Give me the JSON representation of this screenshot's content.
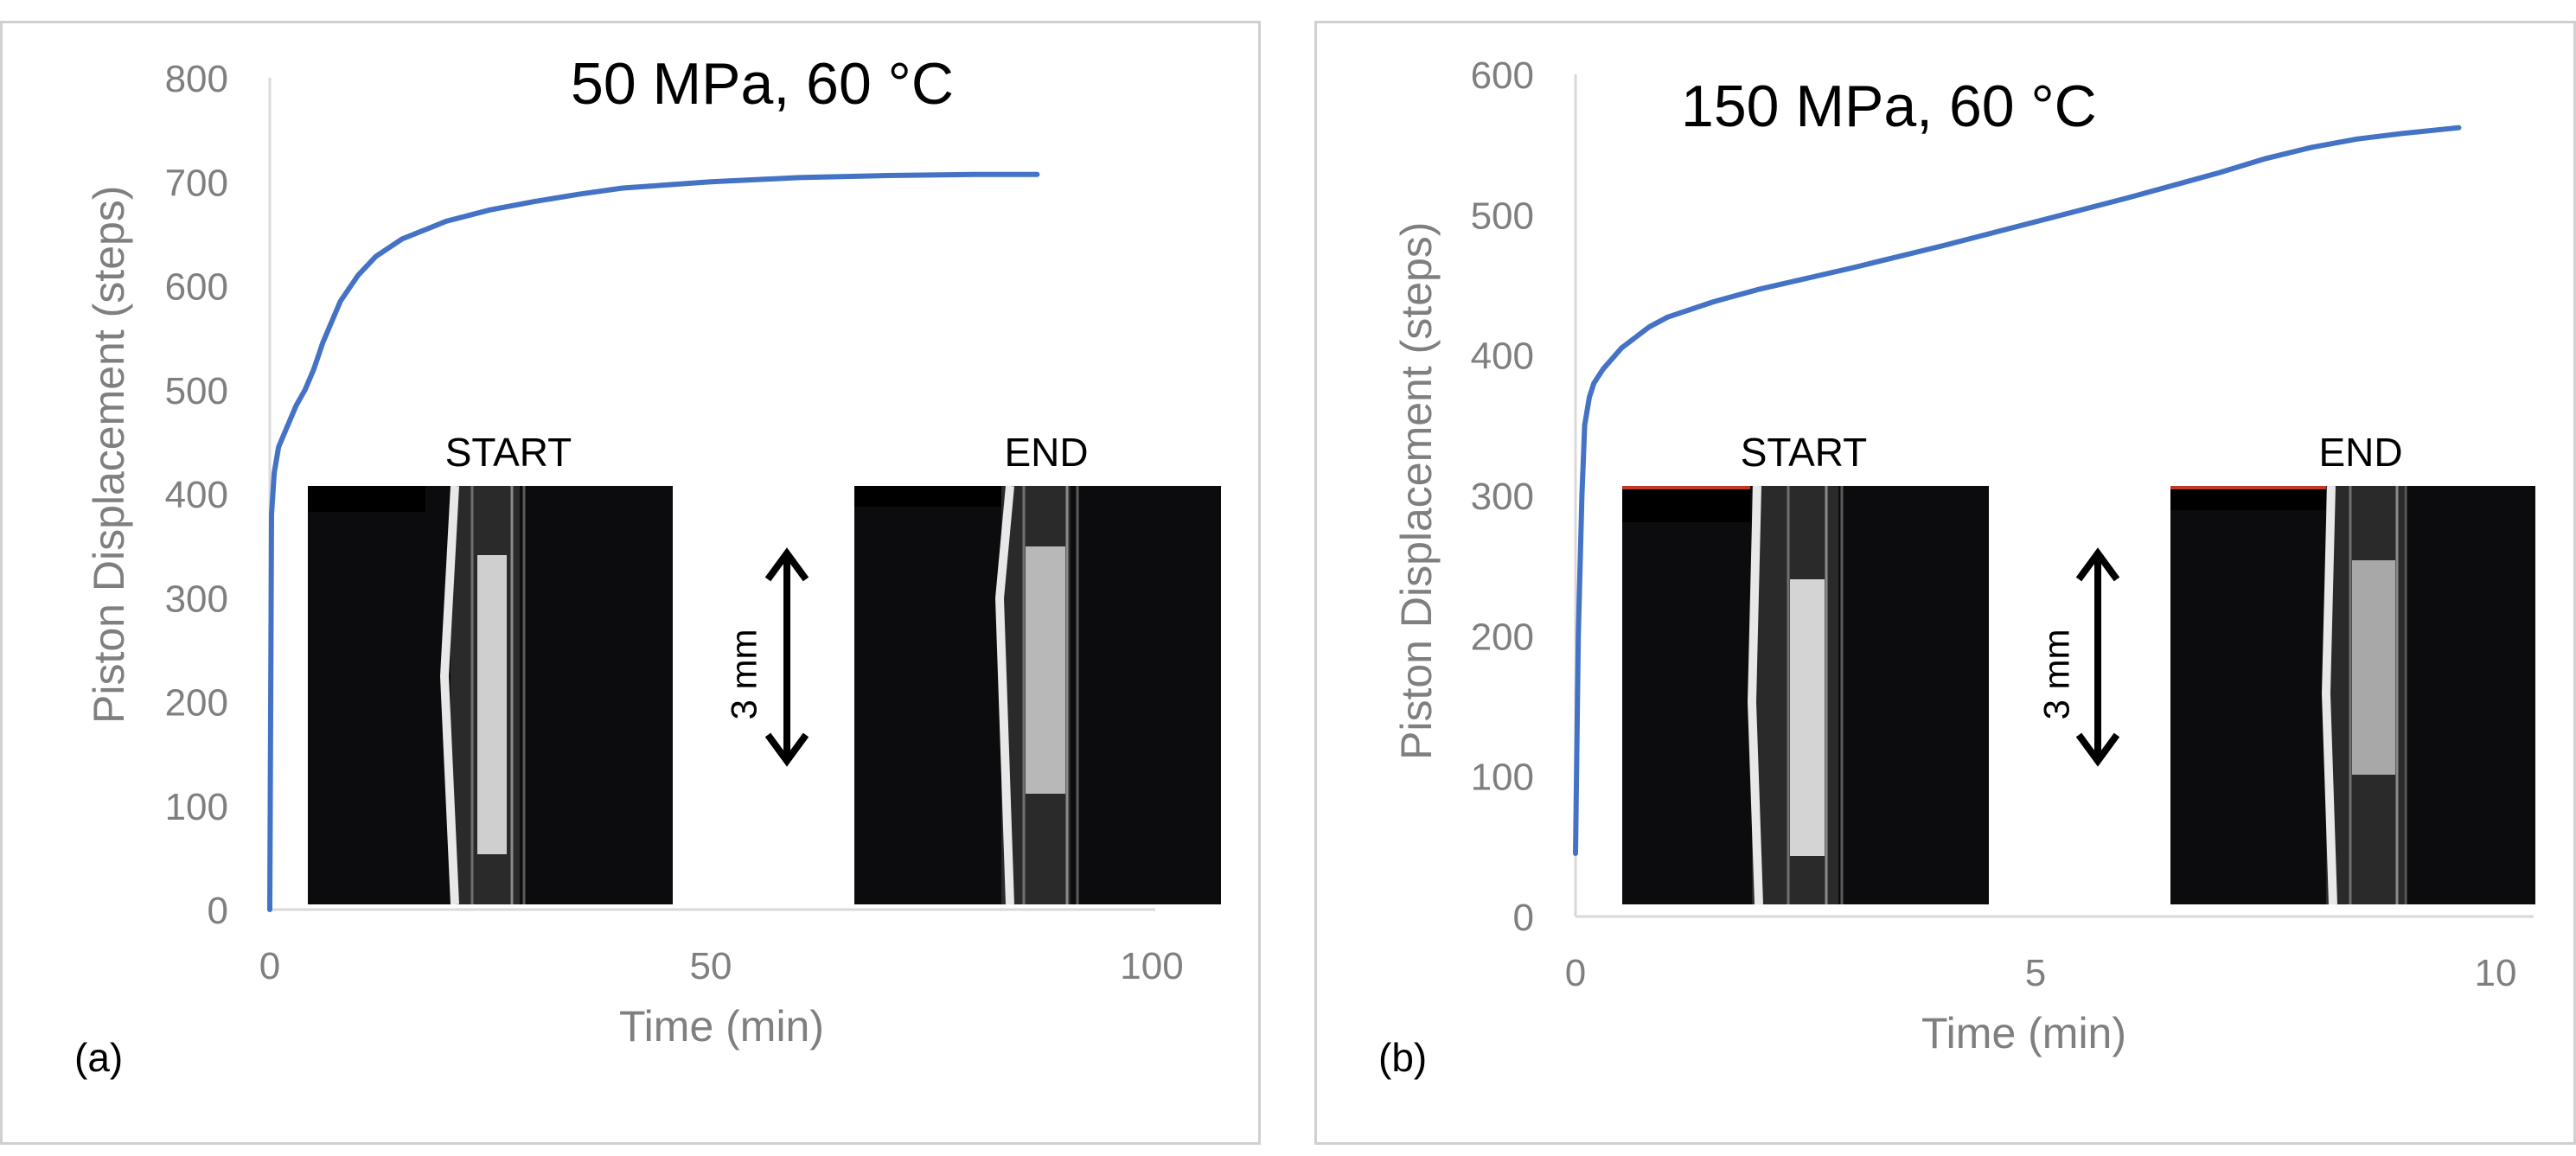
{
  "chart_data": [
    {
      "type": "line",
      "panel_label": "(a)",
      "title": "50 MPa, 60 °C",
      "xlabel": "Time (min)",
      "ylabel": "Piston Displacement (steps)",
      "xlim": [
        0,
        100
      ],
      "ylim": [
        0,
        800
      ],
      "xticks": [
        "0",
        "50",
        "100"
      ],
      "yticks": [
        "0",
        "100",
        "200",
        "300",
        "400",
        "500",
        "600",
        "700",
        "800"
      ],
      "series": [
        {
          "name": "displacement",
          "color": "#4472c4",
          "x": [
            0,
            0.2,
            0.5,
            1,
            2,
            3,
            4,
            5,
            6,
            8,
            10,
            12,
            15,
            20,
            25,
            30,
            35,
            40,
            50,
            60,
            70,
            80,
            87
          ],
          "y": [
            0,
            380,
            420,
            445,
            465,
            485,
            500,
            520,
            545,
            585,
            610,
            628,
            645,
            662,
            673,
            681,
            688,
            694,
            700,
            704,
            706,
            707,
            707
          ]
        }
      ],
      "inset": {
        "start_label": "START",
        "end_label": "END",
        "scale_label": "3 mm"
      }
    },
    {
      "type": "line",
      "panel_label": "(b)",
      "title": "150 MPa, 60 °C",
      "xlabel": "Time (min)",
      "ylabel": "Piston Displacement (steps)",
      "xlim": [
        0,
        10
      ],
      "ylim": [
        0,
        600
      ],
      "xticks": [
        "0",
        "5",
        "10"
      ],
      "yticks": [
        "0",
        "100",
        "200",
        "300",
        "400",
        "500",
        "600"
      ],
      "series": [
        {
          "name": "displacement",
          "color": "#4472c4",
          "x": [
            0,
            0.03,
            0.07,
            0.1,
            0.15,
            0.2,
            0.3,
            0.5,
            0.8,
            1,
            1.5,
            2,
            3,
            4,
            5,
            6,
            7,
            7.5,
            8,
            8.5,
            9,
            9.6
          ],
          "y": [
            45,
            200,
            300,
            350,
            370,
            380,
            390,
            405,
            420,
            427,
            438,
            447,
            462,
            478,
            495,
            512,
            530,
            540,
            548,
            554,
            558,
            562
          ]
        }
      ],
      "inset": {
        "start_label": "START",
        "end_label": "END",
        "scale_label": "3 mm"
      }
    }
  ]
}
